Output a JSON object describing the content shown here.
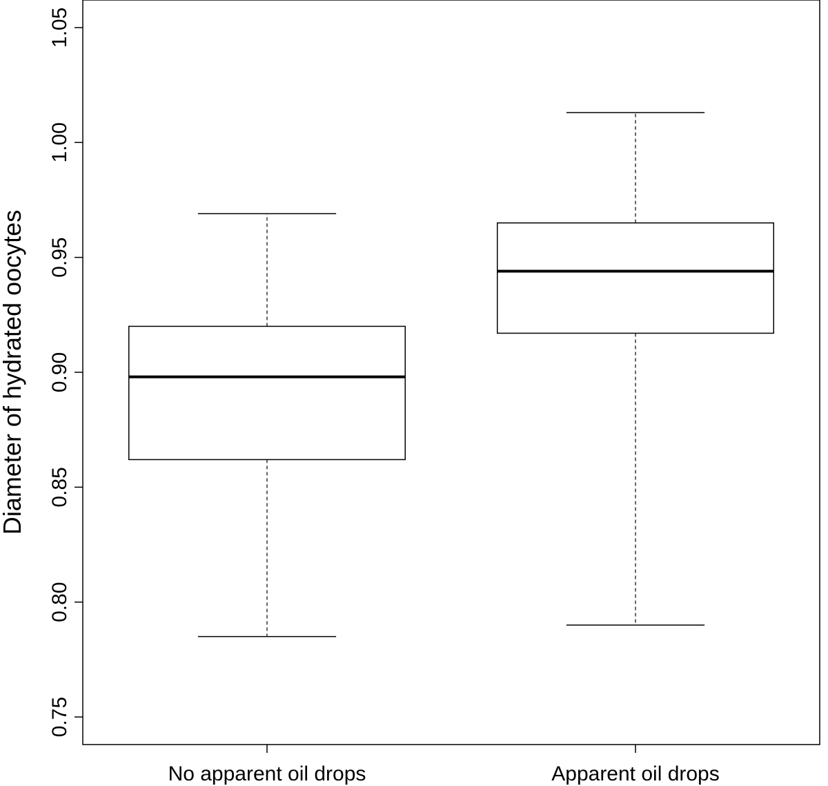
{
  "chart_data": {
    "type": "boxplot",
    "title": "",
    "xlabel": "",
    "ylabel": "Diameter of hydrated oocytes",
    "ylim": [
      0.738,
      1.062
    ],
    "yticks": [
      0.75,
      0.8,
      0.85,
      0.9,
      0.95,
      1.0,
      1.05
    ],
    "ytick_labels": [
      "0.75",
      "0.80",
      "0.85",
      "0.90",
      "0.95",
      "1.00",
      "1.05"
    ],
    "grid": false,
    "groups": [
      {
        "label": "No apparent oil drops",
        "whisker_low": 0.785,
        "q1": 0.862,
        "median": 0.898,
        "q3": 0.92,
        "whisker_high": 0.969
      },
      {
        "label": "Apparent oil drops",
        "whisker_low": 0.79,
        "q1": 0.917,
        "median": 0.944,
        "q3": 0.965,
        "whisker_high": 1.013
      }
    ],
    "colors": {
      "stroke": "#000000",
      "box_fill": "#ffffff"
    }
  }
}
